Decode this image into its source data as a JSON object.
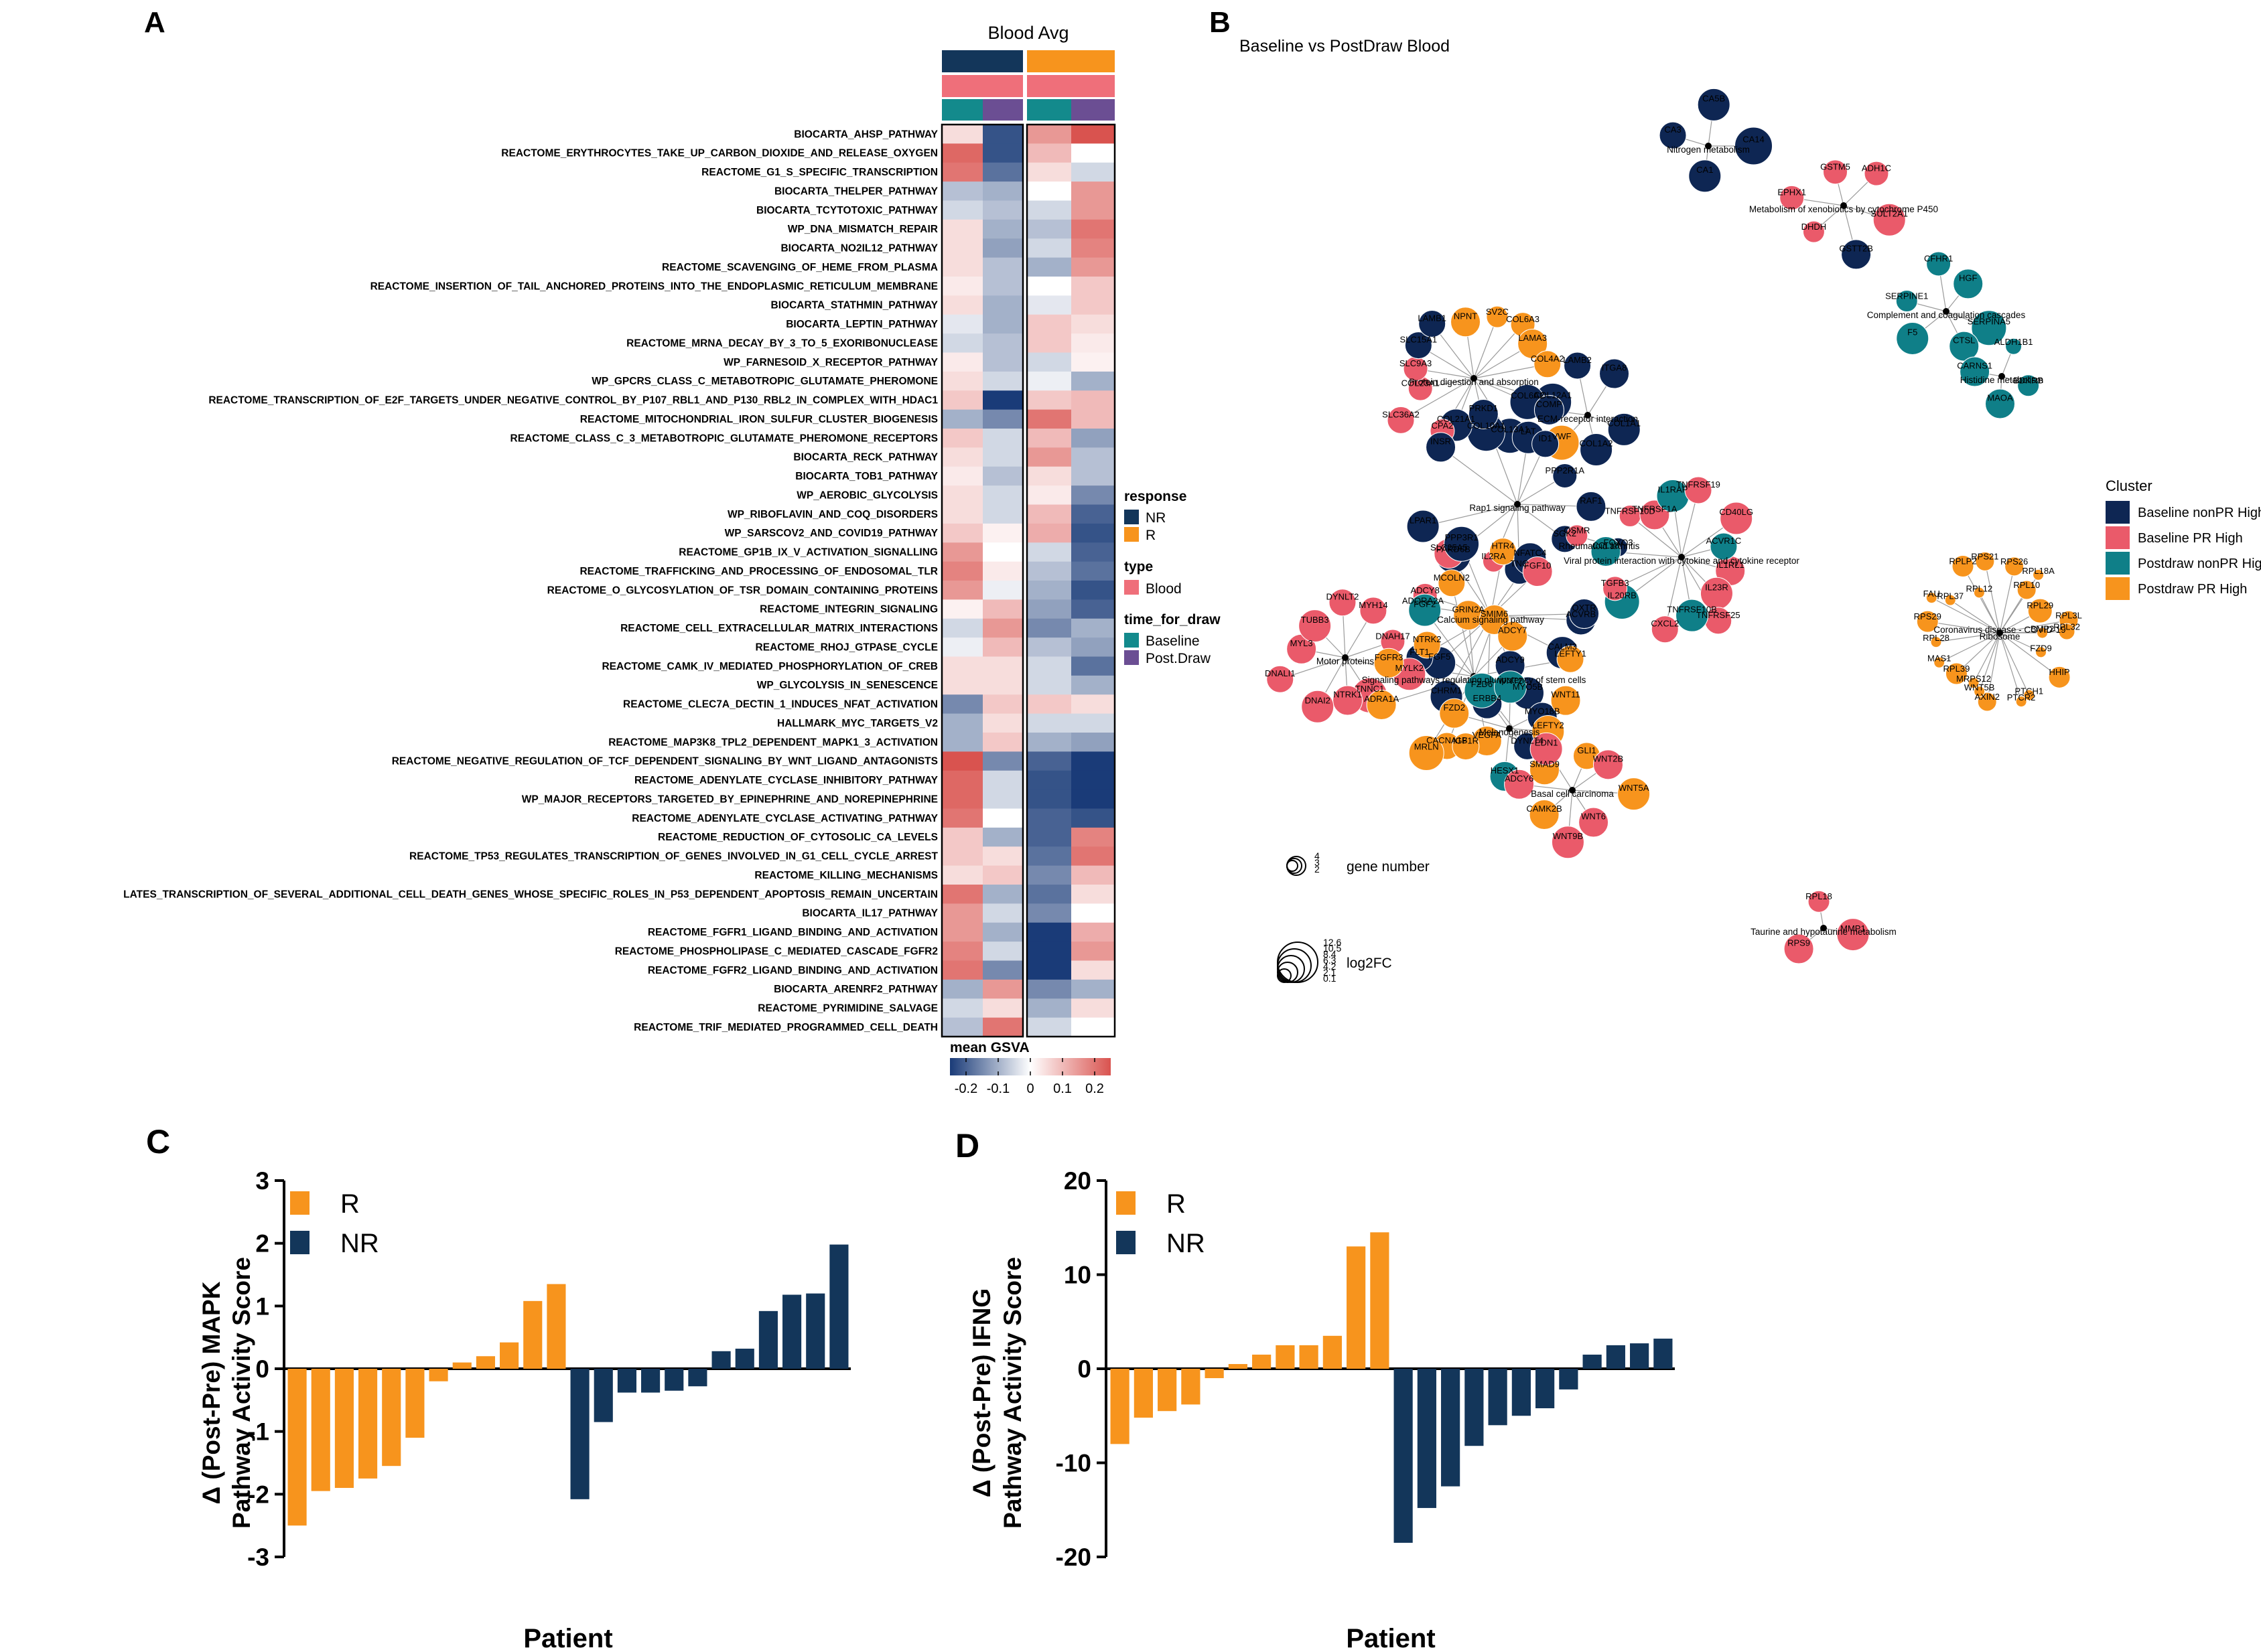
{
  "colors": {
    "nr": "#13365a",
    "r": "#f7941d",
    "blood": "#ef6f7a",
    "baseline": "#138a8c",
    "postdraw": "#6b4e93",
    "heat_low": "#1a3b78",
    "heat_mid": "#ffffff",
    "heat_high": "#d9534f",
    "cluster_baseline_nonpr": "#0e2653",
    "cluster_baseline_pr": "#ea5a6a",
    "cluster_postdraw_nonpr": "#0f7f88",
    "cluster_postdraw_pr": "#f7941d"
  },
  "panel_a": {
    "label": "A",
    "title": "Blood Avg",
    "legend": {
      "response_title": "response",
      "response_items": [
        "NR",
        "R"
      ],
      "type_title": "type",
      "type_items": [
        "Blood"
      ],
      "time_title": "time_for_draw",
      "time_items": [
        "Baseline",
        "Post.Draw"
      ],
      "colorbar_title": "mean GSVA",
      "colorbar_ticks": [
        "-0.2",
        "-0.1",
        "0",
        "0.1",
        "0.2"
      ]
    }
  },
  "panel_b": {
    "label": "B",
    "title": "Baseline vs PostDraw Blood",
    "legend": {
      "title": "Cluster",
      "items": [
        "Baseline nonPR High",
        "Baseline PR High",
        "Postdraw nonPR High",
        "Postdraw PR High"
      ],
      "gene_number_label": "gene number",
      "log2fc_label": "log2FC",
      "gene_number_ticks": [
        "4",
        "3",
        "2"
      ],
      "log2fc_ticks": [
        "12.6",
        "10.5",
        "8.4",
        "6.3",
        "4.2",
        "2.1",
        "0.1"
      ]
    },
    "pathway_labels": [
      "Nitrogen metabolism",
      "Metabolism of xenobiotics by cytochrome P450",
      "Complement and coagulation cascades",
      "Histidine metabolism",
      "Protein digestion and absorption",
      "ECM-receptor interaction",
      "Rap1 signaling pathway",
      "Rheumatoid arthritis",
      "Viral protein interaction with cytokine and cytokine receptor",
      "Cytokine-cytokine receptor interaction",
      "Calcium signaling pathway",
      "Motor proteins",
      "Signaling pathways regulating pluripotency of stem cells",
      "Melanogenesis",
      "Basal cell carcinoma",
      "Ribosome",
      "Coronavirus disease - COVID-19",
      "Taurine and hypotaurine metabolism"
    ],
    "gene_labels": [
      "CA14",
      "CA1",
      "CA3",
      "CA5B",
      "SULT2A1",
      "GSTT2B",
      "DHDH",
      "EPHX1",
      "GSTM5",
      "ADH1C",
      "SERPINA5",
      "CTSL",
      "F5",
      "SERPINE1",
      "CFHR1",
      "HGF",
      "BDKRB",
      "MAOA",
      "CARNS1",
      "ALDH1B1",
      "COL12A1",
      "COL6A2",
      "COL13A1",
      "COL10A1",
      "COL21A1",
      "CPA2",
      "SLC36A2",
      "COL23A1",
      "SLC9A3",
      "SLC15A1",
      "LAMB1",
      "NPNT",
      "SV2C",
      "COL6A3",
      "LAMA3",
      "COL4A2",
      "COL1A1",
      "COL1A2",
      "VWF",
      "COMP",
      "LAMB2",
      "ITGA8",
      "RAF1",
      "SGK2",
      "TNC",
      "IL2RA",
      "PARD6B",
      "LPAR1",
      "INSR",
      "PRKD1",
      "LAT",
      "ID1",
      "PPP2R1A",
      "FOXO3",
      "OSMR",
      "IL1RL1",
      "IL23R",
      "TNFRSF25",
      "TNFRSF10B",
      "CXCL2",
      "IL20RB",
      "TGFB3",
      "CCL18",
      "TNFRSF10D",
      "TNFRSF1A",
      "IL1RAP",
      "TNFRSF19",
      "CD40LG",
      "ACVR1C",
      "ACVRB",
      "CALM3",
      "ADCY9",
      "ERBB4",
      "CHRM1",
      "FGF5",
      "FLT1",
      "ADORA2A",
      "ADCY8",
      "SLC25A5",
      "PPP3R1",
      "HTR4",
      "NFATC4",
      "FGF10",
      "OXTR",
      "MYLK2",
      "TNNC1",
      "NTRK1",
      "DNAI2",
      "DNALI1",
      "MYL3",
      "TUBB3",
      "DYNLT2",
      "MYH14",
      "DNAH17",
      "MYO5B",
      "MYO18B",
      "DYNLT4",
      "VEGFA",
      "CACNA1B",
      "MRLN",
      "ADRA1A",
      "FGFR3",
      "NTRK2",
      "FGF2",
      "MCOLN2",
      "GRIN2A",
      "SMIM6",
      "ADCY7",
      "LEFTY1",
      "LEFTY2",
      "SMAD9",
      "HESX1",
      "IGF1R",
      "FZD2",
      "FZD6",
      "WNT2",
      "WNT11",
      "WNT5A",
      "WNT6",
      "WNT9B",
      "CAMK2B",
      "ADCY6",
      "EDN1",
      "GLI1",
      "WNT2B",
      "BMP2",
      "FZD9",
      "HHIP",
      "PTCH1",
      "PTCR2",
      "AXIN2",
      "WNT5B",
      "MRPS12",
      "RPL39",
      "MAS1",
      "RPL28",
      "RPS29",
      "FAU",
      "RPL37",
      "RPLP2",
      "RPL12",
      "RPS21",
      "RPS26",
      "RPL18A",
      "RPL10",
      "RPL29",
      "RPL3L",
      "RPL32",
      "MMP1",
      "RPS9",
      "RPL18",
      "IKBKE",
      "RPL23A",
      "RPS27",
      "NLRP3",
      "C9",
      "TLR8",
      "C4A",
      "GGT7",
      "GAD2",
      "CDO1"
    ]
  },
  "panel_c": {
    "label": "C",
    "ylabel_line1": "Δ (Post-Pre) MAPK",
    "ylabel_line2": "Pathway Activity Score",
    "xlabel": "Patient",
    "legend": [
      "R",
      "NR"
    ]
  },
  "panel_d": {
    "label": "D",
    "ylabel_line1": "Δ (Post-Pre) IFNG",
    "ylabel_line2": "Pathway Activity Score",
    "xlabel": "Patient",
    "legend": [
      "R",
      "NR"
    ]
  },
  "chart_data": [
    {
      "type": "heatmap",
      "title": "Blood Avg",
      "columns": [
        {
          "response": "NR",
          "type": "Blood",
          "time_for_draw": "Baseline"
        },
        {
          "response": "NR",
          "type": "Blood",
          "time_for_draw": "Post.Draw"
        },
        {
          "response": "R",
          "type": "Blood",
          "time_for_draw": "Baseline"
        },
        {
          "response": "R",
          "type": "Blood",
          "time_for_draw": "Post.Draw"
        }
      ],
      "rows": [
        "BIOCARTA_AHSP_PATHWAY",
        "REACTOME_ERYTHROCYTES_TAKE_UP_CARBON_DIOXIDE_AND_RELEASE_OXYGEN",
        "REACTOME_G1_S_SPECIFIC_TRANSCRIPTION",
        "BIOCARTA_THELPER_PATHWAY",
        "BIOCARTA_TCYTOTOXIC_PATHWAY",
        "WP_DNA_MISMATCH_REPAIR",
        "BIOCARTA_NO2IL12_PATHWAY",
        "REACTOME_SCAVENGING_OF_HEME_FROM_PLASMA",
        "REACTOME_INSERTION_OF_TAIL_ANCHORED_PROTEINS_INTO_THE_ENDOPLASMIC_RETICULUM_MEMBRANE",
        "BIOCARTA_STATHMIN_PATHWAY",
        "BIOCARTA_LEPTIN_PATHWAY",
        "REACTOME_MRNA_DECAY_BY_3_TO_5_EXORIBONUCLEASE",
        "WP_FARNESOID_X_RECEPTOR_PATHWAY",
        "WP_GPCRS_CLASS_C_METABOTROPIC_GLUTAMATE_PHEROMONE",
        "REACTOME_TRANSCRIPTION_OF_E2F_TARGETS_UNDER_NEGATIVE_CONTROL_BY_P107_RBL1_AND_P130_RBL2_IN_COMPLEX_WITH_HDAC1",
        "REACTOME_MITOCHONDRIAL_IRON_SULFUR_CLUSTER_BIOGENESIS",
        "REACTOME_CLASS_C_3_METABOTROPIC_GLUTAMATE_PHEROMONE_RECEPTORS",
        "BIOCARTA_RECK_PATHWAY",
        "BIOCARTA_TOB1_PATHWAY",
        "WP_AEROBIC_GLYCOLYSIS",
        "WP_RIBOFLAVIN_AND_COQ_DISORDERS",
        "WP_SARSCOV2_AND_COVID19_PATHWAY",
        "REACTOME_GP1B_IX_V_ACTIVATION_SIGNALLING",
        "REACTOME_TRAFFICKING_AND_PROCESSING_OF_ENDOSOMAL_TLR",
        "REACTOME_O_GLYCOSYLATION_OF_TSR_DOMAIN_CONTAINING_PROTEINS",
        "REACTOME_INTEGRIN_SIGNALING",
        "REACTOME_CELL_EXTRACELLULAR_MATRIX_INTERACTIONS",
        "REACTOME_RHOJ_GTPASE_CYCLE",
        "REACTOME_CAMK_IV_MEDIATED_PHOSPHORYLATION_OF_CREB",
        "WP_GLYCOLYSIS_IN_SENESCENCE",
        "REACTOME_CLEC7A_DECTIN_1_INDUCES_NFAT_ACTIVATION",
        "HALLMARK_MYC_TARGETS_V2",
        "REACTOME_MAP3K8_TPL2_DEPENDENT_MAPK1_3_ACTIVATION",
        "REACTOME_NEGATIVE_REGULATION_OF_TCF_DEPENDENT_SIGNALING_BY_WNT_LIGAND_ANTAGONISTS",
        "REACTOME_ADENYLATE_CYCLASE_INHIBITORY_PATHWAY",
        "WP_MAJOR_RECEPTORS_TARGETED_BY_EPINEPHRINE_AND_NOREPINEPHRINE",
        "REACTOME_ADENYLATE_CYCLASE_ACTIVATING_PATHWAY",
        "REACTOME_REDUCTION_OF_CYTOSOLIC_CA_LEVELS",
        "REACTOME_TP53_REGULATES_TRANSCRIPTION_OF_GENES_INVOLVED_IN_G1_CELL_CYCLE_ARREST",
        "REACTOME_KILLING_MECHANISMS",
        "LATES_TRANSCRIPTION_OF_SEVERAL_ADDITIONAL_CELL_DEATH_GENES_WHOSE_SPECIFIC_ROLES_IN_P53_DEPENDENT_APOPTOSIS_REMAIN_UNCERTAIN",
        "BIOCARTA_IL17_PATHWAY",
        "REACTOME_FGFR1_LIGAND_BINDING_AND_ACTIVATION",
        "REACTOME_PHOSPHOLIPASE_C_MEDIATED_CASCADE_FGFR2",
        "REACTOME_FGFR2_LIGAND_BINDING_AND_ACTIVATION",
        "BIOCARTA_ARENRF2_PATHWAY",
        "REACTOME_PYRIMIDINE_SALVAGE",
        "REACTOME_TRIF_MEDIATED_PROGRAMMED_CELL_DEATH"
      ],
      "values": [
        [
          0.05,
          -0.22,
          0.15,
          0.25
        ],
        [
          0.22,
          -0.22,
          0.1,
          0.0
        ],
        [
          0.2,
          -0.18,
          0.05,
          -0.05
        ],
        [
          -0.08,
          -0.1,
          0.0,
          0.15
        ],
        [
          -0.05,
          -0.08,
          -0.05,
          0.15
        ],
        [
          0.05,
          -0.1,
          -0.08,
          0.2
        ],
        [
          0.05,
          -0.12,
          -0.05,
          0.18
        ],
        [
          0.05,
          -0.08,
          -0.1,
          0.15
        ],
        [
          0.03,
          -0.08,
          0.0,
          0.08
        ],
        [
          0.05,
          -0.1,
          -0.03,
          0.08
        ],
        [
          -0.03,
          -0.1,
          0.08,
          0.05
        ],
        [
          -0.05,
          -0.08,
          0.08,
          0.03
        ],
        [
          0.03,
          -0.08,
          -0.05,
          0.02
        ],
        [
          0.05,
          -0.05,
          -0.02,
          -0.1
        ],
        [
          0.08,
          -0.25,
          0.08,
          0.1
        ],
        [
          -0.1,
          -0.15,
          0.2,
          0.1
        ],
        [
          0.08,
          -0.05,
          0.1,
          -0.12
        ],
        [
          0.05,
          -0.05,
          0.15,
          -0.08
        ],
        [
          0.03,
          -0.08,
          0.05,
          -0.08
        ],
        [
          0.05,
          -0.05,
          0.03,
          -0.15
        ],
        [
          0.05,
          -0.05,
          0.1,
          -0.2
        ],
        [
          0.08,
          0.02,
          0.12,
          -0.22
        ],
        [
          0.15,
          0.0,
          -0.05,
          -0.2
        ],
        [
          0.18,
          0.03,
          -0.08,
          -0.18
        ],
        [
          0.15,
          -0.02,
          -0.1,
          -0.22
        ],
        [
          0.02,
          0.1,
          -0.12,
          -0.2
        ],
        [
          -0.05,
          0.15,
          -0.15,
          -0.1
        ],
        [
          -0.02,
          0.1,
          -0.08,
          -0.12
        ],
        [
          0.05,
          0.05,
          -0.05,
          -0.18
        ],
        [
          0.05,
          0.05,
          -0.05,
          -0.1
        ],
        [
          -0.15,
          0.08,
          0.08,
          0.05
        ],
        [
          -0.1,
          0.05,
          -0.05,
          -0.05
        ],
        [
          -0.1,
          0.08,
          -0.1,
          -0.12
        ],
        [
          0.25,
          -0.15,
          -0.2,
          -0.25
        ],
        [
          0.22,
          -0.05,
          -0.22,
          -0.25
        ],
        [
          0.22,
          -0.05,
          -0.22,
          -0.28
        ],
        [
          0.2,
          0.0,
          -0.2,
          -0.22
        ],
        [
          0.08,
          -0.1,
          -0.2,
          0.18
        ],
        [
          0.08,
          0.05,
          -0.18,
          0.2
        ],
        [
          0.05,
          0.08,
          -0.15,
          0.1
        ],
        [
          0.2,
          -0.1,
          -0.18,
          0.05
        ],
        [
          0.15,
          -0.05,
          -0.15,
          0.0
        ],
        [
          0.15,
          -0.1,
          -0.25,
          0.12
        ],
        [
          0.18,
          -0.05,
          -0.25,
          0.15
        ],
        [
          0.2,
          -0.15,
          -0.25,
          0.05
        ],
        [
          -0.1,
          0.15,
          -0.15,
          -0.1
        ],
        [
          -0.05,
          0.05,
          -0.1,
          0.05
        ],
        [
          -0.08,
          0.2,
          -0.05,
          0.0
        ]
      ],
      "colorbar_range": [
        -0.25,
        0.25
      ]
    },
    {
      "type": "bar",
      "panel": "C",
      "ylabel": "Δ (Post-Pre) MAPK Pathway Activity Score",
      "xlabel": "Patient",
      "ylim": [
        -3,
        3
      ],
      "yticks": [
        -3,
        -2,
        -1,
        0,
        1,
        2,
        3
      ],
      "series": [
        {
          "name": "R",
          "values": [
            -2.5,
            -1.95,
            -1.9,
            -1.75,
            -1.55,
            -1.1,
            -0.2,
            0.1,
            0.2,
            0.42,
            1.08,
            1.35
          ]
        },
        {
          "name": "NR",
          "values": [
            -2.08,
            -0.85,
            -0.38,
            -0.38,
            -0.35,
            -0.28,
            0.28,
            0.32,
            0.92,
            1.18,
            1.2,
            1.98
          ]
        }
      ]
    },
    {
      "type": "bar",
      "panel": "D",
      "ylabel": "Δ (Post-Pre) IFNG Pathway Activity Score",
      "xlabel": "Patient",
      "ylim": [
        -20,
        20
      ],
      "yticks": [
        -20,
        -10,
        0,
        10,
        20
      ],
      "series": [
        {
          "name": "R",
          "values": [
            -8.0,
            -5.2,
            -4.5,
            -3.8,
            -1.0,
            0.5,
            1.5,
            2.5,
            2.5,
            3.5,
            13.0,
            14.5
          ]
        },
        {
          "name": "NR",
          "values": [
            -18.5,
            -14.8,
            -12.5,
            -8.2,
            -6.0,
            -5.0,
            -4.2,
            -2.2,
            1.5,
            2.5,
            2.7,
            3.2
          ]
        }
      ]
    }
  ]
}
